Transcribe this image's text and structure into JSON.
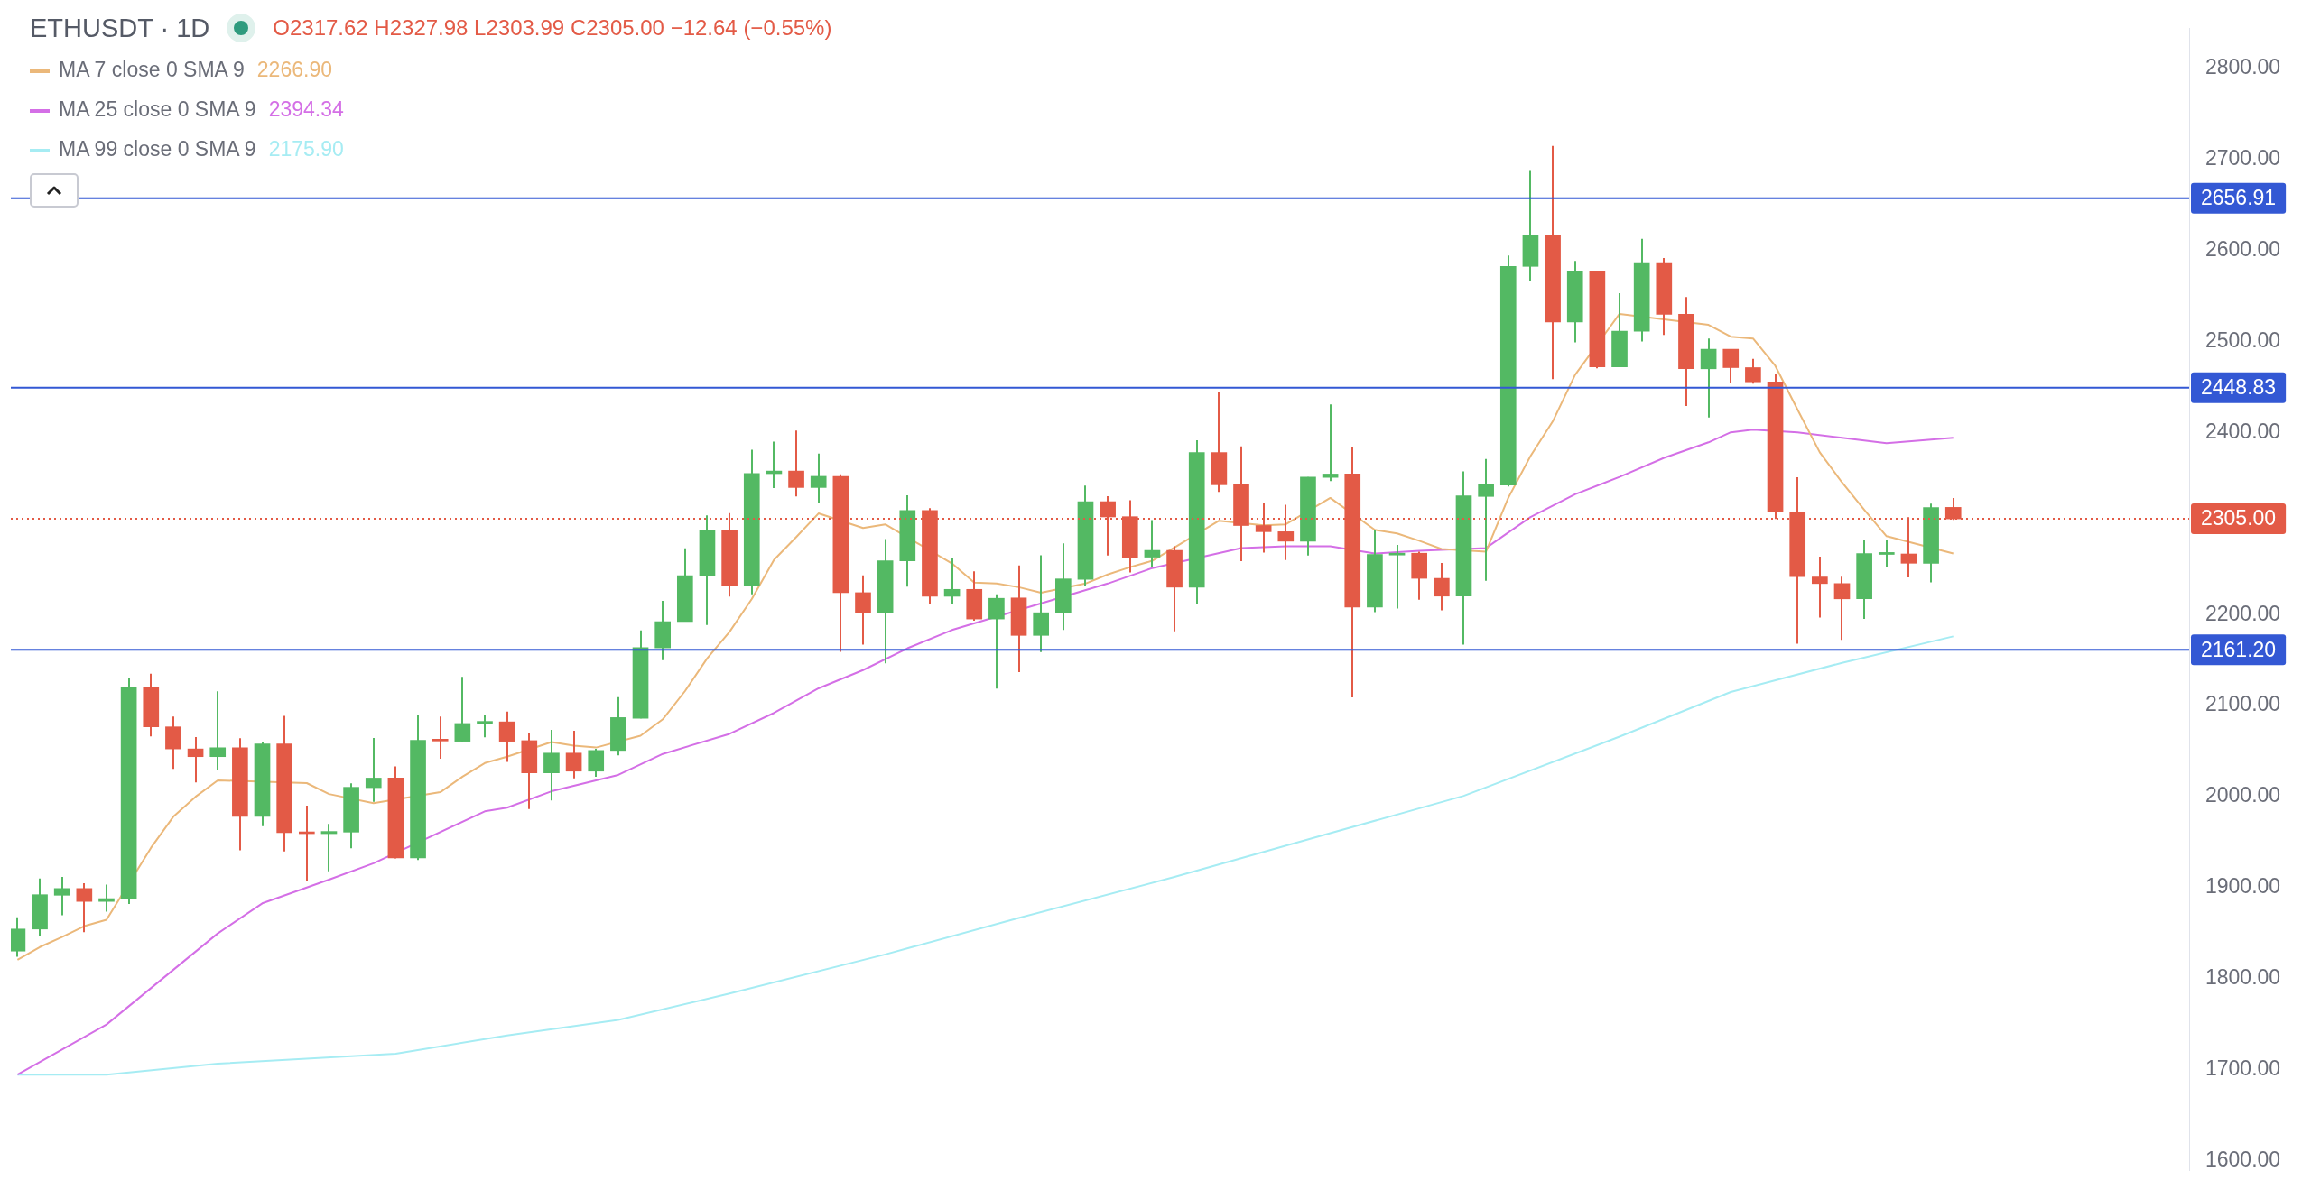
{
  "chart_data": {
    "type": "candlestick",
    "title": "ETHUSDT · 1D",
    "subtitle": "O2317.62 H2327.98 L2303.99 C2305.00 −12.64 (−0.55%)",
    "categories": [
      null,
      null,
      null,
      null,
      null,
      null,
      null,
      null,
      null,
      null,
      null,
      null,
      null,
      null,
      null,
      null,
      null,
      null,
      null,
      null,
      null,
      null,
      null,
      null,
      null,
      null,
      null,
      null,
      null,
      null,
      null,
      null,
      null,
      null,
      null,
      null,
      null,
      null,
      null,
      null,
      null,
      null,
      null,
      null,
      null,
      null,
      null,
      null,
      null,
      null,
      null,
      null,
      null,
      null,
      null,
      null,
      null,
      null,
      null,
      null,
      null,
      null,
      null,
      null,
      null,
      null,
      null,
      null,
      null,
      null,
      null,
      null,
      null,
      null,
      null,
      null,
      null,
      null,
      null,
      null,
      null,
      null,
      null,
      null,
      null,
      null,
      null,
      null
    ],
    "ohlc": [
      [
        1830.6,
        1867.6,
        1824.5,
        1854.8
      ],
      [
        1854.8,
        1910.4,
        1847.1,
        1892.5
      ],
      [
        1891.9,
        1912.1,
        1870.0,
        1899.3
      ],
      [
        1899.3,
        1905.0,
        1851.4,
        1885.1
      ],
      [
        1885.1,
        1903.6,
        1874.0,
        1888.2
      ],
      [
        1887.5,
        2130.9,
        1882.4,
        2120.5
      ],
      [
        2120.5,
        2135.0,
        2066.3,
        2076.7
      ],
      [
        2076.7,
        2088.1,
        2030.6,
        2052.5
      ],
      [
        2052.5,
        2065.6,
        2015.8,
        2044.0
      ],
      [
        2044.0,
        2115.8,
        2028.9,
        2053.8
      ],
      [
        2053.8,
        2064.2,
        1941.3,
        1978.4
      ],
      [
        1978.4,
        2060.2,
        1967.6,
        2057.9
      ],
      [
        2057.9,
        2088.8,
        1940.0,
        1960.5
      ],
      [
        1960.9,
        1990.2,
        1907.7,
        1959.5
      ],
      [
        1959.5,
        1970.3,
        1918.1,
        1961.9
      ],
      [
        1961.2,
        2014.8,
        1943.4,
        2010.4
      ],
      [
        2010.0,
        2064.6,
        1994.5,
        2020.5
      ],
      [
        2020.5,
        2033.3,
        1932.3,
        1932.9
      ],
      [
        1932.9,
        2089.8,
        1930.6,
        2061.9
      ],
      [
        2062.6,
        2088.1,
        2041.7,
        2061.2
      ],
      [
        2060.9,
        2131.6,
        2059.9,
        2080.4
      ],
      [
        2080.7,
        2089.8,
        2065.3,
        2082.1
      ],
      [
        2082.2,
        2093.4,
        2038.2,
        2060.9
      ],
      [
        2061.6,
        2069.9,
        1986.6,
        2026.2
      ],
      [
        2026.2,
        2073.5,
        1996.0,
        2047.9
      ],
      [
        2047.9,
        2072.4,
        2020.1,
        2028.1
      ],
      [
        2028.1,
        2052.6,
        2021.9,
        2050.8
      ],
      [
        2050.8,
        2109.2,
        2045.4,
        2086.9
      ],
      [
        2086.1,
        2182.5,
        2086.1,
        2163.7
      ],
      [
        2163.4,
        2215.0,
        2150.0,
        2192.2
      ],
      [
        2192.2,
        2272.7,
        2192.2,
        2242.7
      ],
      [
        2242.0,
        2308.8,
        2188.6,
        2292.9
      ],
      [
        2292.9,
        2311.3,
        2219.6,
        2231.5
      ],
      [
        2231.5,
        2380.9,
        2222.2,
        2354.9
      ],
      [
        2354.6,
        2389.9,
        2338.7,
        2357.5
      ],
      [
        2357.5,
        2401.8,
        2329.7,
        2339.4
      ],
      [
        2339.4,
        2376.6,
        2322.1,
        2351.7
      ],
      [
        2351.7,
        2353.9,
        2159.0,
        2224.0
      ],
      [
        2224.0,
        2243.1,
        2167.0,
        2202.3
      ],
      [
        2202.3,
        2282.8,
        2146.4,
        2259.0
      ],
      [
        2259.0,
        2330.8,
        2230.5,
        2314.2
      ],
      [
        2314.2,
        2316.7,
        2211.3,
        2220.0
      ],
      [
        2220.0,
        2262.2,
        2211.3,
        2227.6
      ],
      [
        2227.6,
        2247.4,
        2193.3,
        2195.1
      ],
      [
        2195.1,
        2222.2,
        2118.6,
        2217.8
      ],
      [
        2218.2,
        2253.9,
        2136.7,
        2177.1
      ],
      [
        2177.1,
        2265.0,
        2158.9,
        2202.0
      ],
      [
        2201.7,
        2278.1,
        2183.2,
        2239.1
      ],
      [
        2238.7,
        2341.4,
        2231.0,
        2323.9
      ],
      [
        2323.9,
        2330.0,
        2264.7,
        2307.1
      ],
      [
        2307.4,
        2325.3,
        2246.1,
        2262.6
      ],
      [
        2263.0,
        2303.7,
        2252.5,
        2270.4
      ],
      [
        2270.4,
        2274.8,
        2181.5,
        2230.0
      ],
      [
        2230.0,
        2391.3,
        2211.8,
        2377.8
      ],
      [
        2377.8,
        2444.1,
        2334.7,
        2342.4
      ],
      [
        2343.1,
        2384.5,
        2258.6,
        2297.7
      ],
      [
        2297.7,
        2322.2,
        2268.0,
        2290.9
      ],
      [
        2290.9,
        2320.5,
        2259.9,
        2280.5
      ],
      [
        2280.5,
        2350.8,
        2264.7,
        2350.8
      ],
      [
        2350.5,
        2430.6,
        2346.5,
        2354.2
      ],
      [
        2354.2,
        2383.5,
        2109.1,
        2208.1
      ],
      [
        2208.1,
        2292.6,
        2202.7,
        2266.0
      ],
      [
        2265.3,
        2276.4,
        2206.7,
        2267.3
      ],
      [
        2267.3,
        2269.0,
        2216.2,
        2239.7
      ],
      [
        2239.7,
        2256.6,
        2204.7,
        2220.2
      ],
      [
        2220.2,
        2357.2,
        2167.0,
        2330.3
      ],
      [
        2329.6,
        2370.8,
        2237.0,
        2343.0
      ],
      [
        2342.2,
        2593.9,
        2340.5,
        2582.1
      ],
      [
        2582.1,
        2687.8,
        2565.7,
        2616.6
      ],
      [
        2616.6,
        2714.3,
        2458.4,
        2521.1
      ],
      [
        2521.1,
        2588.0,
        2498.8,
        2577.1
      ],
      [
        2577.1,
        2577.1,
        2470.2,
        2471.8
      ],
      [
        2471.8,
        2552.7,
        2471.8,
        2511.0
      ],
      [
        2511.0,
        2612.4,
        2499.6,
        2586.3
      ],
      [
        2586.3,
        2591.4,
        2506.8,
        2529.5
      ],
      [
        2529.5,
        2548.5,
        2428.9,
        2469.7
      ],
      [
        2469.7,
        2503.0,
        2416.3,
        2491.2
      ],
      [
        2491.2,
        2491.2,
        2454.2,
        2471.0
      ],
      [
        2471.0,
        2480.7,
        2453.3,
        2455.4
      ],
      [
        2455.4,
        2464.3,
        2304.8,
        2312.3
      ],
      [
        2312.3,
        2350.6,
        2168.0,
        2241.6
      ],
      [
        2241.2,
        2263.5,
        2196.6,
        2234.0
      ],
      [
        2234.0,
        2241.6,
        2172.2,
        2217.2
      ],
      [
        2217.2,
        2281.6,
        2195.3,
        2266.9
      ],
      [
        2266.0,
        2281.6,
        2252.1,
        2268.1
      ],
      [
        2266.5,
        2306.9,
        2240.8,
        2256.3
      ],
      [
        2256.3,
        2321.6,
        2235.3,
        2317.4
      ],
      [
        2317.62,
        2327.98,
        2303.99,
        2305.0
      ]
    ],
    "colors": [
      "#53b963",
      "#53b963",
      "#53b963",
      "#e35a46",
      "#53b963",
      "#53b963",
      "#e35a46",
      "#e35a46",
      "#e35a46",
      "#53b963",
      "#e35a46",
      "#53b963",
      "#e35a46",
      "#e35a46",
      "#53b963",
      "#53b963",
      "#53b963",
      "#e35a46",
      "#53b963",
      "#e35a46",
      "#53b963",
      "#53b963",
      "#e35a46",
      "#e35a46",
      "#53b963",
      "#e35a46",
      "#53b963",
      "#53b963",
      "#53b963",
      "#53b963",
      "#53b963",
      "#53b963",
      "#e35a46",
      "#53b963",
      "#53b963",
      "#e35a46",
      "#53b963",
      "#e35a46",
      "#e35a46",
      "#53b963",
      "#53b963",
      "#e35a46",
      "#53b963",
      "#e35a46",
      "#53b963",
      "#e35a46",
      "#53b963",
      "#53b963",
      "#53b963",
      "#e35a46",
      "#e35a46",
      "#53b963",
      "#e35a46",
      "#53b963",
      "#e35a46",
      "#e35a46",
      "#e35a46",
      "#e35a46",
      "#53b963",
      "#53b963",
      "#e35a46",
      "#53b963",
      "#53b963",
      "#e35a46",
      "#e35a46",
      "#53b963",
      "#53b963",
      "#53b963",
      "#53b963",
      "#e35a46",
      "#53b963",
      "#e35a46",
      "#53b963",
      "#53b963",
      "#e35a46",
      "#e35a46",
      "#53b963",
      "#e35a46",
      "#e35a46",
      "#e35a46",
      "#e35a46",
      "#e35a46",
      "#e35a46",
      "#53b963",
      "#53b963",
      "#e35a46",
      "#53b963",
      "#e35a46"
    ],
    "series": [
      {
        "type": "line",
        "name": "MA 7 close 0 SMA 9",
        "color": "#ebb87a",
        "values": [
          1821,
          1835,
          1846,
          1858,
          1865,
          null,
          1944,
          1978,
          2000,
          2018,
          null,
          null,
          null,
          2015,
          2003,
          null,
          1993,
          null,
          null,
          2005,
          2022,
          2037,
          2044,
          null,
          2060,
          2056,
          2054,
          null,
          2067,
          2085,
          2116,
          2152,
          2181,
          2217,
          2260,
          2285,
          2311,
          null,
          2295,
          2299,
          null,
          null,
          2256,
          2235,
          2234,
          2230,
          2224,
          null,
          2234,
          2244,
          2252,
          2259,
          null,
          null,
          2303,
          null,
          2298,
          2299,
          null,
          2328,
          null,
          2293,
          2289,
          2281,
          2272,
          null,
          2269,
          2328,
          2374,
          2412,
          2463,
          null,
          2530,
          null,
          null,
          null,
          2518,
          2505,
          2503,
          2473,
          2425,
          2378,
          2345,
          2315,
          2286,
          null,
          null,
          2267
        ]
      },
      {
        "type": "line",
        "name": "MA 25 close 0 SMA 9",
        "color": "#d46fe6",
        "values": [
          1695,
          null,
          null,
          null,
          1750,
          null,
          null,
          null,
          null,
          1850,
          null,
          1883,
          null,
          null,
          1909,
          null,
          1927,
          null,
          null,
          null,
          null,
          1984,
          1988,
          null,
          2006,
          null,
          null,
          2024,
          null,
          2047,
          null,
          null,
          2069,
          null,
          2092,
          null,
          2119,
          null,
          2139,
          null,
          2163,
          null,
          2183,
          null,
          null,
          null,
          null,
          null,
          null,
          2234,
          null,
          2251,
          null,
          null,
          null,
          2273,
          null,
          2275,
          null,
          2275,
          null,
          2267,
          null,
          2270,
          null,
          null,
          2273,
          null,
          2307,
          null,
          2332,
          null,
          2351,
          null,
          2372,
          null,
          2389,
          2400,
          2403,
          null,
          2400,
          null,
          2394,
          null,
          2388,
          null,
          2392,
          2394
        ]
      },
      {
        "type": "line",
        "name": "MA 99 close 0 SMA 9",
        "color": "#a6ecf3",
        "values": [
          1695,
          null,
          null,
          null,
          1695,
          null,
          null,
          null,
          null,
          1707,
          null,
          null,
          null,
          null,
          null,
          null,
          null,
          1718,
          null,
          null,
          null,
          null,
          1738,
          null,
          null,
          null,
          null,
          1755,
          null,
          null,
          null,
          null,
          1784,
          null,
          null,
          null,
          null,
          null,
          null,
          1827,
          null,
          null,
          null,
          null,
          null,
          1867,
          null,
          null,
          null,
          null,
          null,
          null,
          1912,
          null,
          null,
          null,
          null,
          null,
          null,
          1960,
          null,
          null,
          null,
          null,
          null,
          2001,
          null,
          null,
          null,
          null,
          null,
          null,
          2066,
          null,
          null,
          null,
          null,
          2115,
          null,
          null,
          null,
          null,
          2147,
          null,
          null,
          null,
          null,
          2176
        ]
      }
    ],
    "annotations": [
      "2266.90",
      "2394.34",
      "2175.90"
    ],
    "ref_lines": [
      {
        "axis": "y",
        "value": 2656.91,
        "label": "2656.91",
        "color": "#3358d4"
      },
      {
        "axis": "y",
        "value": 2448.83,
        "label": "2448.83",
        "color": "#3358d4"
      },
      {
        "axis": "y",
        "value": 2161.2,
        "label": "2161.20",
        "color": "#3358d4"
      },
      {
        "axis": "y",
        "value": 2305.0,
        "label": "2305.00",
        "color": "#e35a46",
        "line_style": "dotted"
      }
    ],
    "ylim": [
      1590,
      2843
    ],
    "yticks": [
      {
        "value": 1600,
        "label": "1600.00"
      },
      {
        "value": 1700,
        "label": "1700.00"
      },
      {
        "value": 1800,
        "label": "1800.00"
      },
      {
        "value": 1900,
        "label": "1900.00"
      },
      {
        "value": 2000,
        "label": "2000.00"
      },
      {
        "value": 2100,
        "label": "2100.00"
      },
      {
        "value": 2200,
        "label": "2200.00"
      },
      {
        "value": 2400,
        "label": "2400.00"
      },
      {
        "value": 2500,
        "label": "2500.00"
      },
      {
        "value": 2600,
        "label": "2600.00"
      },
      {
        "value": 2700,
        "label": "2700.00"
      },
      {
        "value": 2800,
        "label": "2800.00"
      }
    ],
    "tick_labels": "y",
    "legend": "top left",
    "marker": "none",
    "grid": false
  }
}
